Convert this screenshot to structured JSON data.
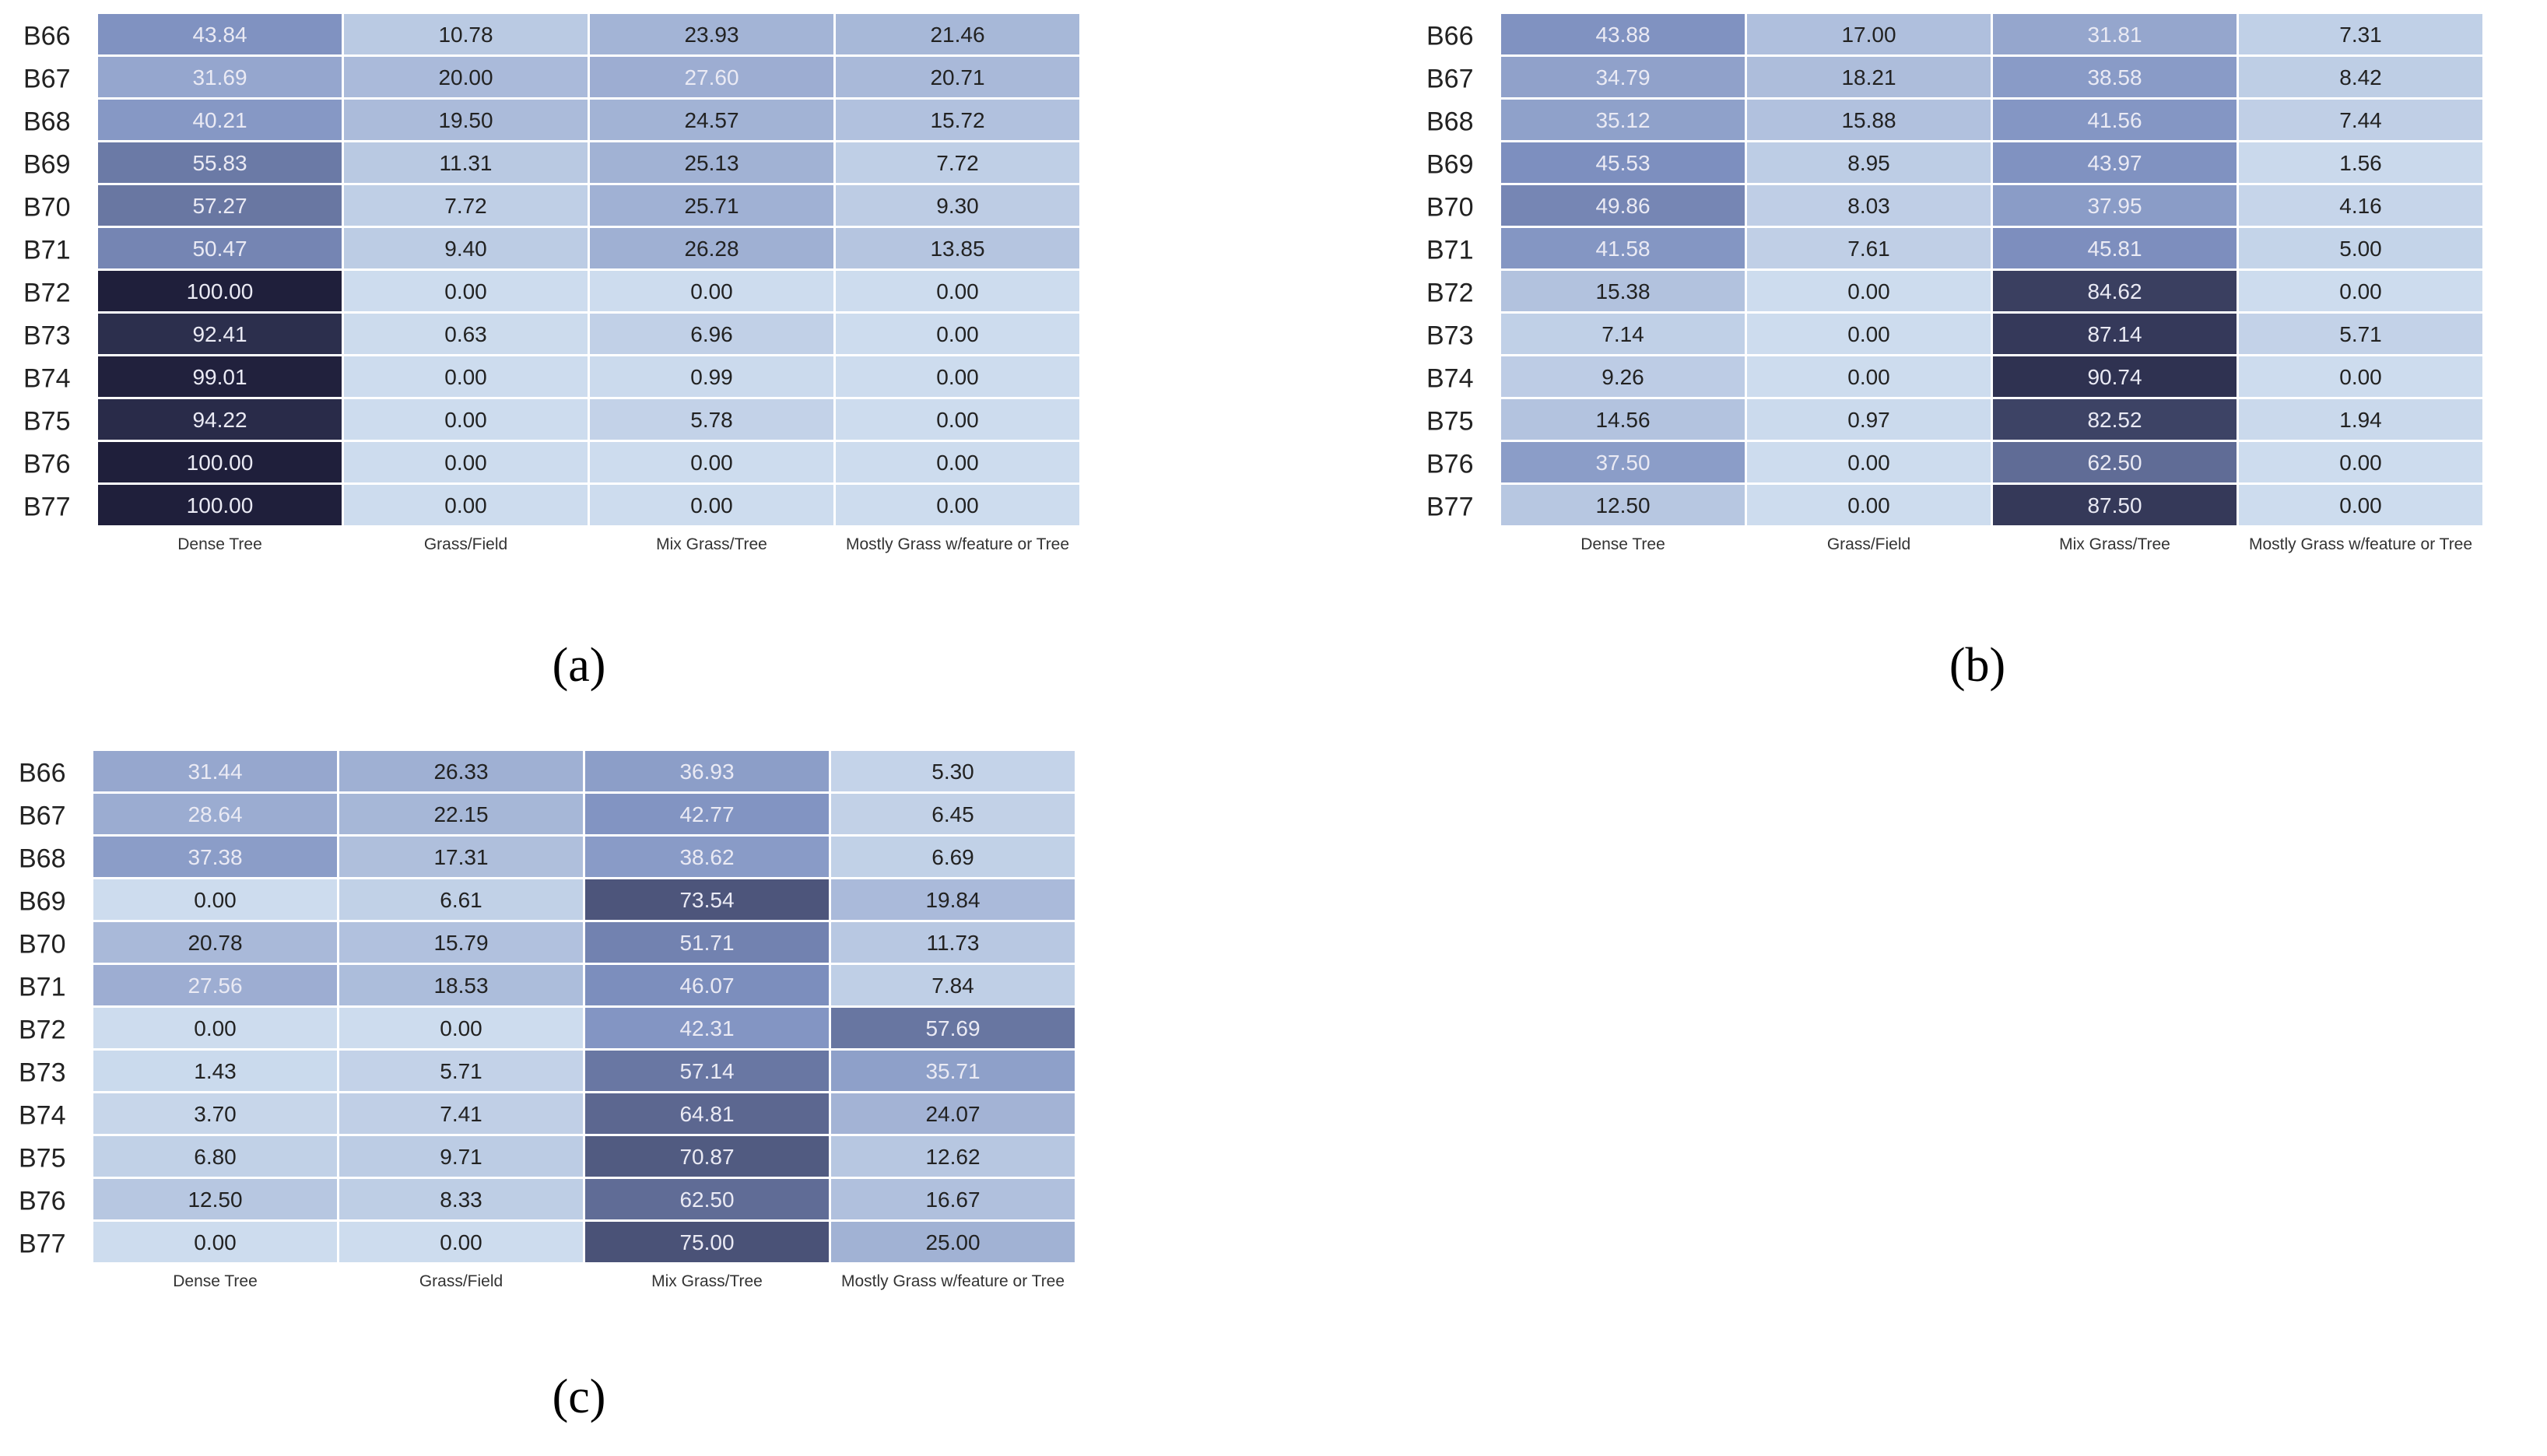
{
  "colors": {
    "scale_low": "#cddcee",
    "scale_mid": "#7e90c0",
    "scale_high": "#1f1f3b",
    "grid_line": "#ffffff",
    "text_dark": "#222222",
    "text_light": "#eaeaf4"
  },
  "chart_data": [
    {
      "type": "heatmap",
      "id": "a",
      "caption": "(a)",
      "columns": [
        "Dense Tree",
        "Grass/Field",
        "Mix Grass/Tree",
        "Mostly Grass w/feature or Tree"
      ],
      "rows": [
        "B66",
        "B67",
        "B68",
        "B69",
        "B70",
        "B71",
        "B72",
        "B73",
        "B74",
        "B75",
        "B76",
        "B77"
      ],
      "values": [
        [
          43.84,
          10.78,
          23.93,
          21.46
        ],
        [
          31.69,
          20.0,
          27.6,
          20.71
        ],
        [
          40.21,
          19.5,
          24.57,
          15.72
        ],
        [
          55.83,
          11.31,
          25.13,
          7.72
        ],
        [
          57.27,
          7.72,
          25.71,
          9.3
        ],
        [
          50.47,
          9.4,
          26.28,
          13.85
        ],
        [
          100.0,
          0.0,
          0.0,
          0.0
        ],
        [
          92.41,
          0.63,
          6.96,
          0.0
        ],
        [
          99.01,
          0.0,
          0.99,
          0.0
        ],
        [
          94.22,
          0.0,
          5.78,
          0.0
        ],
        [
          100.0,
          0.0,
          0.0,
          0.0
        ],
        [
          100.0,
          0.0,
          0.0,
          0.0
        ]
      ],
      "labels": [
        [
          "43.84",
          "10.78",
          "23.93",
          "21.46"
        ],
        [
          "31.69",
          "20.00",
          "27.60",
          "20.71"
        ],
        [
          "40.21",
          "19.50",
          "24.57",
          "15.72"
        ],
        [
          "55.83",
          "11.31",
          "25.13",
          "7.72"
        ],
        [
          "57.27",
          "7.72",
          "25.71",
          "9.30"
        ],
        [
          "50.47",
          "9.40",
          "26.28",
          "13.85"
        ],
        [
          "100.00",
          "0.00",
          "0.00",
          "0.00"
        ],
        [
          "92.41",
          "0.63",
          "6.96",
          "0.00"
        ],
        [
          "99.01",
          "0.00",
          "0.99",
          "0.00"
        ],
        [
          "94.22",
          "0.00",
          "5.78",
          "0.00"
        ],
        [
          "100.00",
          "0.00",
          "0.00",
          "0.00"
        ],
        [
          "100.00",
          "0.00",
          "0.00",
          "0.00"
        ]
      ]
    },
    {
      "type": "heatmap",
      "id": "b",
      "caption": "(b)",
      "columns": [
        "Dense Tree",
        "Grass/Field",
        "Mix Grass/Tree",
        "Mostly Grass w/feature or Tree"
      ],
      "rows": [
        "B66",
        "B67",
        "B68",
        "B69",
        "B70",
        "B71",
        "B72",
        "B73",
        "B74",
        "B75",
        "B76",
        "B77"
      ],
      "values": [
        [
          43.88,
          17.0,
          31.81,
          7.31
        ],
        [
          34.79,
          18.21,
          38.58,
          8.42
        ],
        [
          35.12,
          15.88,
          41.56,
          7.44
        ],
        [
          45.53,
          8.95,
          43.97,
          1.56
        ],
        [
          49.86,
          8.03,
          37.95,
          4.16
        ],
        [
          41.58,
          7.61,
          45.81,
          5.0
        ],
        [
          15.38,
          0.0,
          84.62,
          0.0
        ],
        [
          7.14,
          0.0,
          87.14,
          5.71
        ],
        [
          9.26,
          0.0,
          90.74,
          0.0
        ],
        [
          14.56,
          0.97,
          82.52,
          1.94
        ],
        [
          37.5,
          0.0,
          62.5,
          0.0
        ],
        [
          12.5,
          0.0,
          87.5,
          0.0
        ]
      ],
      "labels": [
        [
          "43.88",
          "17.00",
          "31.81",
          "7.31"
        ],
        [
          "34.79",
          "18.21",
          "38.58",
          "8.42"
        ],
        [
          "35.12",
          "15.88",
          "41.56",
          "7.44"
        ],
        [
          "45.53",
          "8.95",
          "43.97",
          "1.56"
        ],
        [
          "49.86",
          "8.03",
          "37.95",
          "4.16"
        ],
        [
          "41.58",
          "7.61",
          "45.81",
          "5.00"
        ],
        [
          "15.38",
          "0.00",
          "84.62",
          "0.00"
        ],
        [
          "7.14",
          "0.00",
          "87.14",
          "5.71"
        ],
        [
          "9.26",
          "0.00",
          "90.74",
          "0.00"
        ],
        [
          "14.56",
          "0.97",
          "82.52",
          "1.94"
        ],
        [
          "37.50",
          "0.00",
          "62.50",
          "0.00"
        ],
        [
          "12.50",
          "0.00",
          "87.50",
          "0.00"
        ]
      ]
    },
    {
      "type": "heatmap",
      "id": "c",
      "caption": "(c)",
      "columns": [
        "Dense Tree",
        "Grass/Field",
        "Mix Grass/Tree",
        "Mostly Grass w/feature or Tree"
      ],
      "rows": [
        "B66",
        "B67",
        "B68",
        "B69",
        "B70",
        "B71",
        "B72",
        "B73",
        "B74",
        "B75",
        "B76",
        "B77"
      ],
      "values": [
        [
          31.44,
          26.33,
          36.93,
          5.3
        ],
        [
          28.64,
          22.15,
          42.77,
          6.45
        ],
        [
          37.38,
          17.31,
          38.62,
          6.69
        ],
        [
          0.0,
          6.61,
          73.54,
          19.84
        ],
        [
          20.78,
          15.79,
          51.71,
          11.73
        ],
        [
          27.56,
          18.53,
          46.07,
          7.84
        ],
        [
          0.0,
          0.0,
          42.31,
          57.69
        ],
        [
          1.43,
          5.71,
          57.14,
          35.71
        ],
        [
          3.7,
          7.41,
          64.81,
          24.07
        ],
        [
          6.8,
          9.71,
          70.87,
          12.62
        ],
        [
          12.5,
          8.33,
          62.5,
          16.67
        ],
        [
          0.0,
          0.0,
          75.0,
          25.0
        ]
      ],
      "labels": [
        [
          "31.44",
          "26.33",
          "36.93",
          "5.30"
        ],
        [
          "28.64",
          "22.15",
          "42.77",
          "6.45"
        ],
        [
          "37.38",
          "17.31",
          "38.62",
          "6.69"
        ],
        [
          "0.00",
          "6.61",
          "73.54",
          "19.84"
        ],
        [
          "20.78",
          "15.79",
          "51.71",
          "11.73"
        ],
        [
          "27.56",
          "18.53",
          "46.07",
          "7.84"
        ],
        [
          "0.00",
          "0.00",
          "42.31",
          "57.69"
        ],
        [
          "1.43",
          "5.71",
          "57.14",
          "35.71"
        ],
        [
          "3.70",
          "7.41",
          "64.81",
          "24.07"
        ],
        [
          "6.80",
          "9.71",
          "70.87",
          "12.62"
        ],
        [
          "12.50",
          "8.33",
          "62.50",
          "16.67"
        ],
        [
          "0.00",
          "0.00",
          "75.00",
          "25.00"
        ]
      ]
    }
  ]
}
